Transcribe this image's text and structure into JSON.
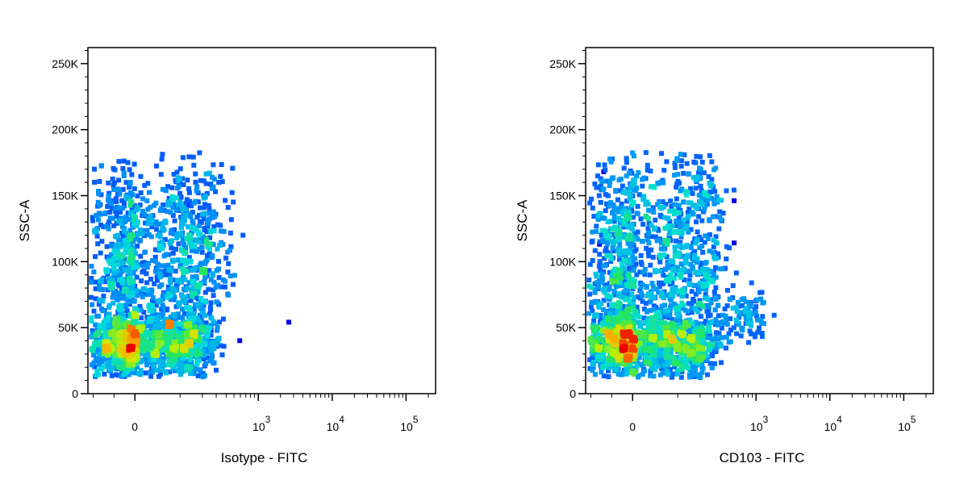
{
  "chart_data": [
    {
      "type": "scatter",
      "style": "density",
      "xlabel": "Isotype - FITC",
      "ylabel": "SSC-A",
      "xscale": "biexponential",
      "x_ticks": [
        "0",
        "10^3",
        "10^4",
        "10^5"
      ],
      "y_ticks": [
        "0",
        "50K",
        "100K",
        "150K",
        "200K",
        "250K"
      ],
      "ylim": [
        0,
        262144
      ],
      "xlim": [
        -200,
        262144
      ],
      "grid": false,
      "populations": [
        {
          "name": "",
          "x_center": 0,
          "x_spread": 120,
          "y_center": 40000,
          "y_spread": 12000,
          "n": 1400
        },
        {
          "name": "",
          "x_center": 30,
          "x_spread": 150,
          "y_center": 125000,
          "y_spread": 28000,
          "n": 700
        },
        {
          "name": "",
          "x_center": 20,
          "x_spread": 140,
          "y_center": 80000,
          "y_spread": 18000,
          "n": 400
        }
      ],
      "outliers": [
        [
          240,
          50000
        ],
        [
          550,
          42000
        ],
        [
          2400,
          56000
        ],
        [
          120,
          145000
        ]
      ]
    },
    {
      "type": "scatter",
      "style": "density",
      "xlabel": "CD103 - FITC",
      "ylabel": "SSC-A",
      "xscale": "biexponential",
      "x_ticks": [
        "0",
        "10^3",
        "10^4",
        "10^5"
      ],
      "y_ticks": [
        "0",
        "50K",
        "100K",
        "150K",
        "200K",
        "250K"
      ],
      "ylim": [
        0,
        262144
      ],
      "xlim": [
        -200,
        262144
      ],
      "grid": false,
      "populations": [
        {
          "name": "",
          "x_center": 0,
          "x_spread": 120,
          "y_center": 40000,
          "y_spread": 12000,
          "n": 1400
        },
        {
          "name": "",
          "x_center": 30,
          "x_spread": 150,
          "y_center": 130000,
          "y_spread": 28000,
          "n": 700
        },
        {
          "name": "",
          "x_center": 20,
          "x_spread": 140,
          "y_center": 80000,
          "y_spread": 18000,
          "n": 400
        },
        {
          "name": "",
          "x_center": 600,
          "x_spread": 350,
          "y_center": 60000,
          "y_spread": 10000,
          "n": 110
        }
      ],
      "outliers": [
        [
          500,
          148000
        ],
        [
          500,
          116000
        ],
        [
          -150,
          170000
        ],
        [
          -170,
          115000
        ]
      ]
    }
  ]
}
